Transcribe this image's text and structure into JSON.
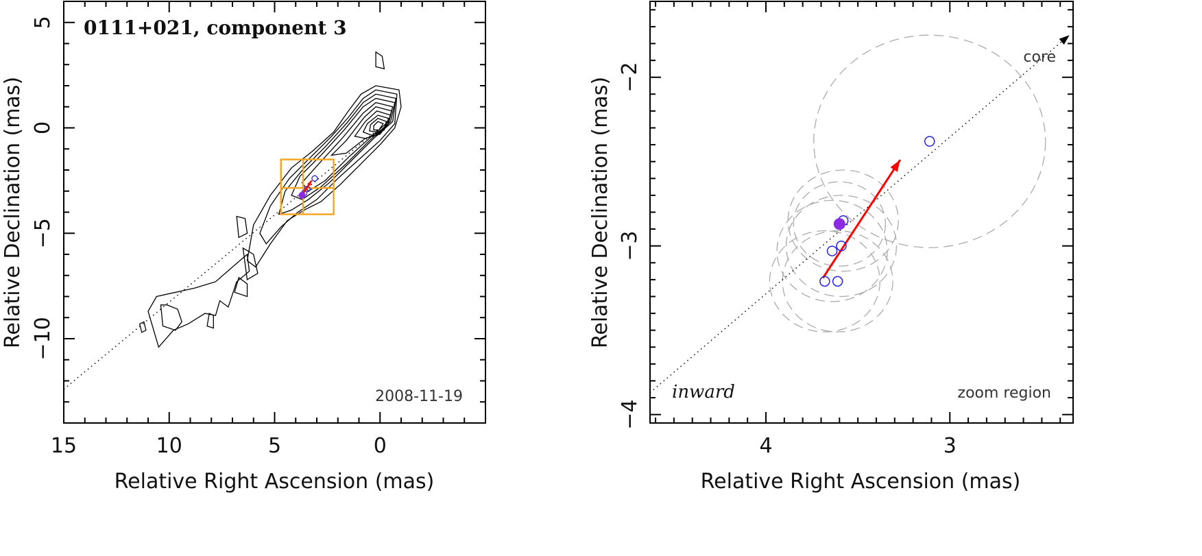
{
  "chart_data": [
    {
      "type": "contour",
      "panel": "left",
      "title": "0111+021, component 3",
      "date": "2008-11-19",
      "xlabel": "Relative Right Ascension (mas)",
      "ylabel": "Relative Declination (mas)",
      "xlim": [
        15,
        -5
      ],
      "ylim": [
        -14,
        6
      ],
      "xticks": [
        15,
        10,
        5,
        0
      ],
      "yticks": [
        5,
        0,
        -5,
        -10
      ],
      "xtick_labels": [
        "15",
        "10",
        "5",
        "0"
      ],
      "ytick_labels": [
        "5",
        "0",
        "−5",
        "−10"
      ],
      "jet_axis_line": [
        [
          15,
          -12.4
        ],
        [
          0,
          0
        ]
      ],
      "zoom_box": {
        "x": [
          2.2,
          4.7
        ],
        "y": [
          -4.1,
          -1.5
        ]
      },
      "zoom_box_dividers": {
        "x": 3.65,
        "y": -2.85
      },
      "components": [
        {
          "x": 3.6,
          "y": -3.1
        },
        {
          "x": 3.45,
          "y": -2.9
        },
        {
          "x": 3.1,
          "y": -2.4
        }
      ],
      "arrow": {
        "from": [
          3.7,
          -3.2
        ],
        "to": [
          3.25,
          -2.5
        ]
      },
      "peak": {
        "x": 0.1,
        "y": 0.0
      },
      "contour_levels": 10,
      "colors": {
        "box": "#f5a623",
        "arrow": "#ff0000",
        "component": "#2222dd",
        "contour": "#000000"
      }
    },
    {
      "type": "scatter",
      "panel": "right",
      "xlabel": "Relative Right Ascension (mas)",
      "ylabel": "Relative Declination (mas)",
      "xlim": [
        4.63,
        2.33
      ],
      "ylim": [
        -4.05,
        -1.55
      ],
      "xticks": [
        4,
        3
      ],
      "yticks": [
        -2,
        -3,
        -4
      ],
      "xtick_labels": [
        "4",
        "3"
      ],
      "ytick_labels": [
        "−2",
        "−3",
        "−4"
      ],
      "annotations": {
        "top_right": "core",
        "bottom_left": "inward",
        "bottom_right": "zoom region"
      },
      "jet_axis_line": [
        [
          4.63,
          -3.87
        ],
        [
          2.35,
          -1.75
        ]
      ],
      "epochs_open": [
        {
          "x": 3.11,
          "y": -2.38
        },
        {
          "x": 3.58,
          "y": -2.85
        },
        {
          "x": 3.59,
          "y": -3.0
        },
        {
          "x": 3.64,
          "y": -3.03
        },
        {
          "x": 3.68,
          "y": -3.21
        },
        {
          "x": 3.61,
          "y": -3.21
        }
      ],
      "epoch_current": {
        "x": 3.6,
        "y": -2.87
      },
      "position_error_radii": [
        {
          "x": 3.11,
          "y": -2.38,
          "r": 0.63
        },
        {
          "x": 3.58,
          "y": -2.85,
          "r": 0.3
        },
        {
          "x": 3.59,
          "y": -3.0,
          "r": 0.3
        },
        {
          "x": 3.64,
          "y": -3.03,
          "r": 0.3
        },
        {
          "x": 3.68,
          "y": -3.21,
          "r": 0.3
        },
        {
          "x": 3.61,
          "y": -3.21,
          "r": 0.3
        },
        {
          "x": 3.6,
          "y": -2.87,
          "r": 0.25
        }
      ],
      "arrow": {
        "from": [
          3.69,
          -3.19
        ],
        "to": [
          3.27,
          -2.49
        ]
      },
      "colors": {
        "open": "#2222dd",
        "filled": "#8a2be2",
        "arrow": "#ff0000",
        "circles": "#aaaaaa"
      }
    }
  ]
}
